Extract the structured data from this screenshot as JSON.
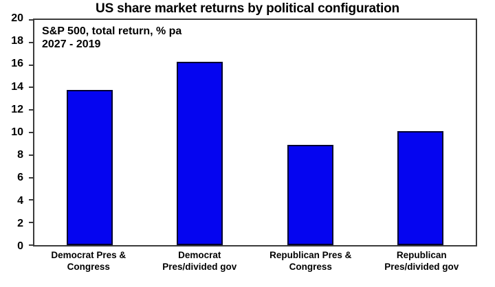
{
  "title": "US share market returns by political configuration",
  "annotation": {
    "line1": "S&P 500, total return, % pa",
    "line2": "2027 - 2019"
  },
  "chart_data": {
    "type": "bar",
    "title": "US share market returns by political configuration",
    "subtitle": "S&P 500, total return, % pa 2027 - 2019",
    "categories": [
      "Democrat Pres &\nCongress",
      "Democrat\nPres/divided gov",
      "Republican Pres &\nCongress",
      "Republican\nPres/divided gov"
    ],
    "values": [
      13.8,
      16.3,
      8.9,
      10.1
    ],
    "xlabel": "",
    "ylabel": "",
    "ylim": [
      0,
      20
    ],
    "y_ticks": [
      0,
      2,
      4,
      6,
      8,
      10,
      12,
      14,
      16,
      18,
      20
    ],
    "grid": false,
    "legend": false,
    "bar_color": "#0505f0",
    "bar_border_color": "#000030",
    "axis_color": "#3a3a3a",
    "text_color": "#000000",
    "background_color": "#ffffff"
  }
}
